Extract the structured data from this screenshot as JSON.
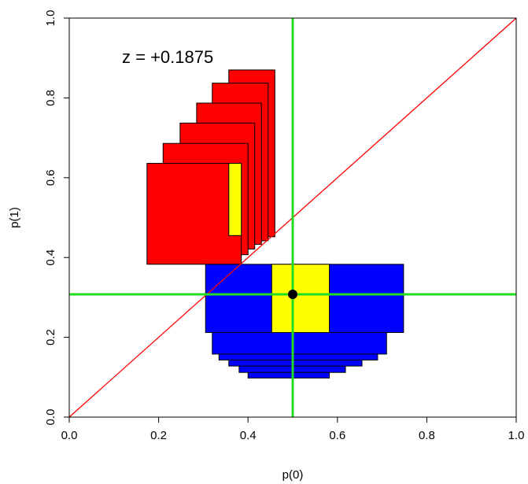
{
  "chart_data": {
    "type": "scatter",
    "xlabel": "p(0)",
    "ylabel": "p(1)",
    "xlim": [
      0,
      1
    ],
    "ylim": [
      0,
      1
    ],
    "x_ticks": [
      "0.0",
      "0.2",
      "0.4",
      "0.6",
      "0.8",
      "1.0"
    ],
    "y_ticks": [
      "0.0",
      "0.2",
      "0.4",
      "0.6",
      "0.8",
      "1.0"
    ],
    "annotation": "z = +0.1875",
    "point": {
      "x": 0.5,
      "y": 0.3077
    },
    "reference_lines": {
      "vertical_x": 0.5,
      "horizontal_y": 0.3077,
      "diagonal": [
        [
          0,
          0
        ],
        [
          1,
          1
        ]
      ]
    },
    "red_rects": [
      [
        0.174,
        0.383,
        0.385,
        0.636
      ],
      [
        0.21,
        0.407,
        0.4,
        0.686
      ],
      [
        0.248,
        0.421,
        0.415,
        0.737
      ],
      [
        0.285,
        0.433,
        0.43,
        0.787
      ],
      [
        0.32,
        0.442,
        0.445,
        0.837
      ],
      [
        0.357,
        0.452,
        0.46,
        0.87
      ]
    ],
    "yellow_in_red": [
      0.357,
      0.455,
      0.385,
      0.636
    ],
    "blue_rects": [
      [
        0.4,
        0.098,
        0.582,
        0.3
      ],
      [
        0.38,
        0.112,
        0.618,
        0.308
      ],
      [
        0.357,
        0.128,
        0.655,
        0.32
      ],
      [
        0.335,
        0.143,
        0.69,
        0.33
      ],
      [
        0.32,
        0.158,
        0.71,
        0.34
      ],
      [
        0.305,
        0.212,
        0.748,
        0.383
      ]
    ],
    "yellow_in_blue": [
      0.453,
      0.212,
      0.582,
      0.383
    ],
    "colors": {
      "red": "#ff0000",
      "blue": "#0000ff",
      "yellow": "#ffff00",
      "green": "#22dd22",
      "diagonal": "#ff0000",
      "point": "#000000"
    }
  }
}
